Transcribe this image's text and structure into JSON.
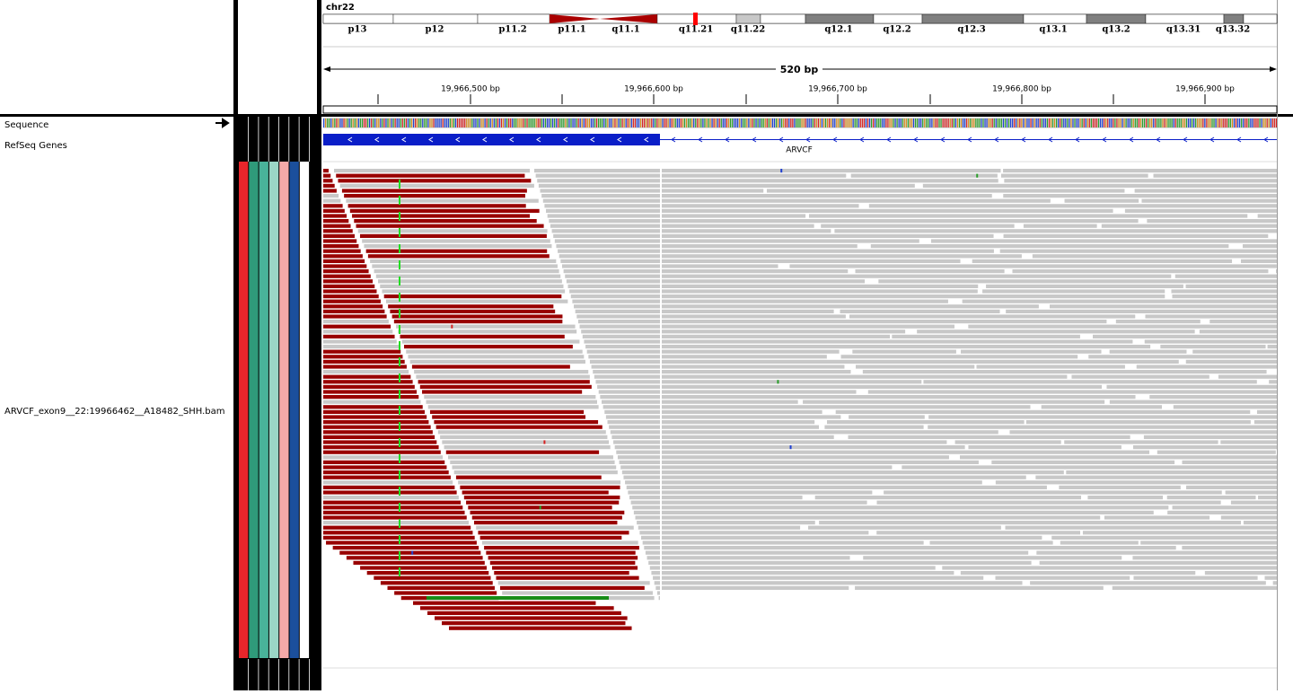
{
  "header": {
    "chromosome": "chr22",
    "cytobands": [
      "p13",
      "p12",
      "p11.2",
      "p11.1",
      "q11.1",
      "q11.21",
      "q11.22",
      "q12.1",
      "q12.2",
      "q12.3",
      "q13.1",
      "q13.2",
      "q13.31",
      "q13.32"
    ],
    "span": "520 bp",
    "ruler": [
      "19,966,500 bp",
      "19,966,600 bp",
      "19,966,700 bp",
      "19,966,800 bp",
      "19,966,900 bp"
    ]
  },
  "tracks": [
    {
      "name": "Sequence"
    },
    {
      "name": "RefSeq Genes"
    },
    {
      "name": "ARVCF_exon9__22:19966462__A18482_SHH.bam"
    }
  ],
  "gene": "ARVCF"
}
